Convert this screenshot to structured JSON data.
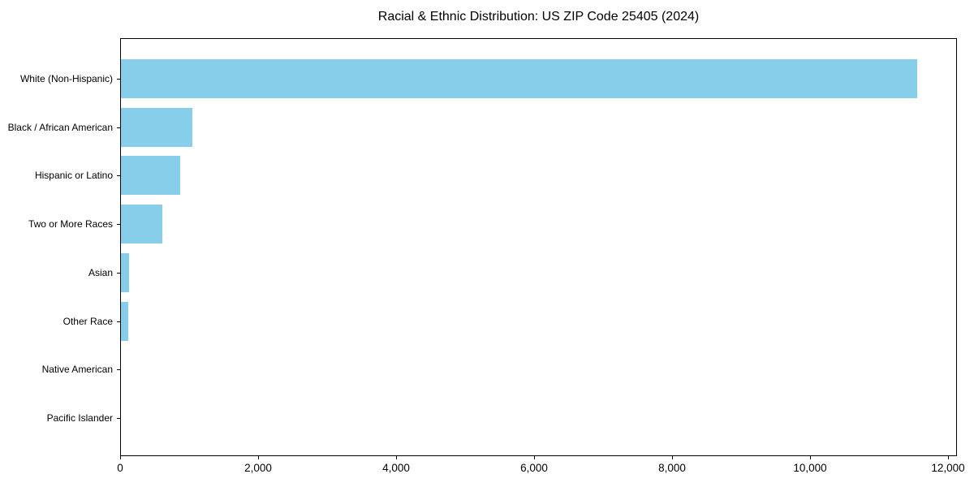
{
  "page": {
    "background_color": "#ffffff",
    "text_color": "#000000"
  },
  "chart_data": {
    "type": "bar",
    "orientation": "horizontal",
    "title": "Racial & Ethnic Distribution: US ZIP Code 25405 (2024)",
    "categories": [
      "White (Non-Hispanic)",
      "Black / African American",
      "Hispanic or Latino",
      "Two or More Races",
      "Asian",
      "Other Race",
      "Native American",
      "Pacific Islander"
    ],
    "values": [
      11540,
      1030,
      855,
      605,
      120,
      110,
      0,
      0
    ],
    "xlabel": "",
    "ylabel": "",
    "xlim": [
      0,
      12130
    ],
    "x_ticks": [
      0,
      2000,
      4000,
      6000,
      8000,
      10000,
      12000
    ],
    "x_tick_labels": [
      "0",
      "2,000",
      "4,000",
      "6,000",
      "8,000",
      "10,000",
      "12,000"
    ],
    "bar_color": "#87CEEB",
    "axis_color": "#000000",
    "grid": false,
    "legend": "none",
    "bar_height_fraction": 0.8
  }
}
